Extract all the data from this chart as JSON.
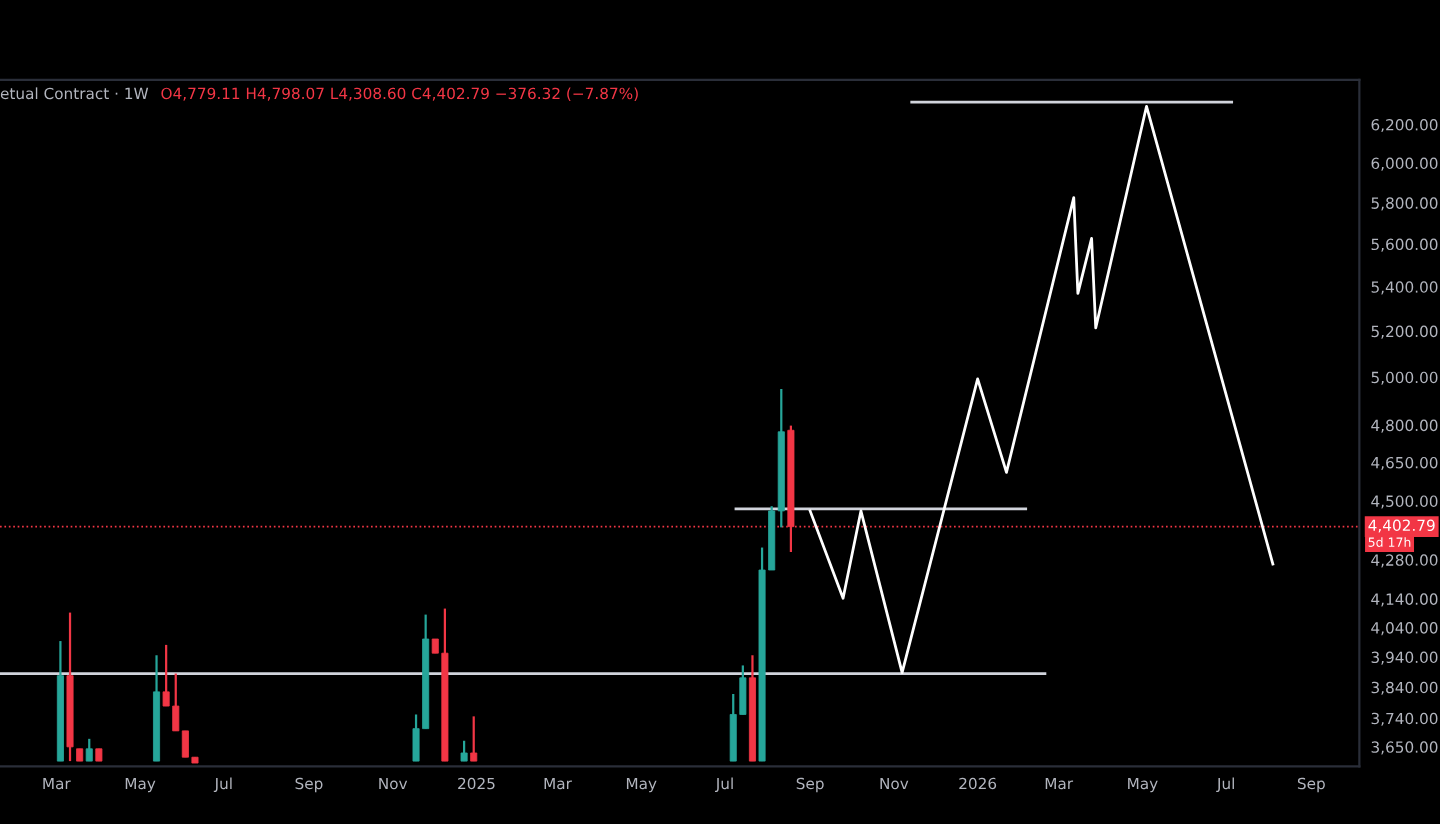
{
  "chart_data": {
    "type": "candlestick",
    "title": "etual Contract · 1W",
    "subtitle": "O4,779.11 H4,798.07 L4,308.60 C4,402.79 −376.32 (−7.87%)",
    "x": [
      "2024-03-04",
      "2024-03-11",
      "2024-03-18",
      "2024-03-25",
      "2024-04-01",
      "2024-05-13",
      "2024-05-20",
      "2024-05-27",
      "2024-06-03",
      "2024-06-10",
      "2024-11-18",
      "2024-11-25",
      "2024-12-02",
      "2024-12-09",
      "2024-12-23",
      "2024-12-30",
      "2025-07-07",
      "2025-07-14",
      "2025-07-21",
      "2025-07-28",
      "2025-08-04",
      "2025-08-11",
      "2025-08-18"
    ],
    "ohlc": [
      [
        3606,
        3994,
        3606,
        3878
      ],
      [
        3878,
        4092,
        3606,
        3650
      ],
      [
        3644,
        3644,
        3606,
        3606
      ],
      [
        3606,
        3675,
        3606,
        3644
      ],
      [
        3644,
        3644,
        3606,
        3606
      ],
      [
        3606,
        3946,
        3606,
        3825
      ],
      [
        3825,
        3981,
        3779,
        3779
      ],
      [
        3779,
        3885,
        3700,
        3700
      ],
      [
        3700,
        3700,
        3618,
        3618
      ],
      [
        3618,
        3618,
        3600,
        3600
      ],
      [
        3606,
        3752,
        3606,
        3707
      ],
      [
        3707,
        4085,
        3707,
        4001
      ],
      [
        4001,
        4001,
        3953,
        3953
      ],
      [
        3953,
        4106,
        3606,
        3606
      ],
      [
        3606,
        3669,
        3606,
        3631
      ],
      [
        3631,
        3746,
        3606,
        3606
      ],
      [
        3606,
        3818,
        3606,
        3752
      ],
      [
        3752,
        3912,
        3752,
        3871
      ],
      [
        3871,
        3946,
        3606,
        3606
      ],
      [
        3606,
        4325,
        3606,
        4243
      ],
      [
        4243,
        4480,
        4243,
        4462
      ],
      [
        4462,
        4950,
        4400,
        4773
      ],
      [
        4779.11,
        4798.07,
        4308.6,
        4402.79
      ]
    ],
    "colors": [
      "#26a69a",
      "#f23645",
      "#f23645",
      "#26a69a",
      "#f23645",
      "#26a69a",
      "#f23645",
      "#f23645",
      "#f23645",
      "#f23645",
      "#26a69a",
      "#26a69a",
      "#f23645",
      "#f23645",
      "#26a69a",
      "#f23645",
      "#26a69a",
      "#26a69a",
      "#f23645",
      "#26a69a",
      "#26a69a",
      "#26a69a",
      "#f23645"
    ],
    "series": [
      {
        "type": "line",
        "color": "#d1d4dc",
        "x": [
          "2024-01-20",
          "2026-02-19"
        ],
        "values": [
          3885,
          3885
        ]
      },
      {
        "type": "line",
        "color": "#d1d4dc",
        "x": [
          "2025-07-09",
          "2026-02-05"
        ],
        "values": [
          4470,
          4470
        ]
      },
      {
        "type": "line",
        "color": "#d1d4dc",
        "x": [
          "2025-11-14",
          "2026-07-05"
        ],
        "values": [
          6319,
          6319
        ]
      },
      {
        "type": "line",
        "color": "#ffffff",
        "x": [
          "2025-09-01",
          "2025-09-25",
          "2025-10-08",
          "2025-11-07",
          "2026-01-01",
          "2026-01-22",
          "2026-03-12",
          "2026-03-15",
          "2026-03-25",
          "2026-03-28",
          "2026-05-04",
          "2026-08-04"
        ],
        "values": [
          4462,
          4142,
          4462,
          3888,
          4993,
          4611,
          5826,
          5370,
          5627,
          5214,
          6297,
          4265
        ]
      }
    ],
    "log": "y",
    "ylim": [
      3590,
      6440
    ],
    "yticks": [
      {
        "value": 3650,
        "label": "3,650.00"
      },
      {
        "value": 3740,
        "label": "3,740.00"
      },
      {
        "value": 3840,
        "label": "3,840.00"
      },
      {
        "value": 3940,
        "label": "3,940.00"
      },
      {
        "value": 4040,
        "label": "4,040.00"
      },
      {
        "value": 4140,
        "label": "4,140.00"
      },
      {
        "value": 4280,
        "label": "4,280.00"
      },
      {
        "value": 4500,
        "label": "4,500.00"
      },
      {
        "value": 4650,
        "label": "4,650.00"
      },
      {
        "value": 4800,
        "label": "4,800.00"
      },
      {
        "value": 5000,
        "label": "5,000.00"
      },
      {
        "value": 5200,
        "label": "5,200.00"
      },
      {
        "value": 5400,
        "label": "5,400.00"
      },
      {
        "value": 5600,
        "label": "5,600.00"
      },
      {
        "value": 5800,
        "label": "5,800.00"
      },
      {
        "value": 6000,
        "label": "6,000.00"
      },
      {
        "value": 6200,
        "label": "6,200.00"
      }
    ],
    "xlim": [
      "2024-01-20",
      "2026-10-06"
    ],
    "xticks": [
      {
        "value": "2024-03-01",
        "label": "Mar"
      },
      {
        "value": "2024-05-01",
        "label": "May"
      },
      {
        "value": "2024-07-01",
        "label": "Jul"
      },
      {
        "value": "2024-09-01",
        "label": "Sep"
      },
      {
        "value": "2024-11-01",
        "label": "Nov"
      },
      {
        "value": "2025-01-01",
        "label": "2025"
      },
      {
        "value": "2025-03-01",
        "label": "Mar"
      },
      {
        "value": "2025-05-01",
        "label": "May"
      },
      {
        "value": "2025-07-01",
        "label": "Jul"
      },
      {
        "value": "2025-09-01",
        "label": "Sep"
      },
      {
        "value": "2025-11-01",
        "label": "Nov"
      },
      {
        "value": "2026-01-01",
        "label": "2026"
      },
      {
        "value": "2026-03-01",
        "label": "Mar"
      },
      {
        "value": "2026-05-01",
        "label": "May"
      },
      {
        "value": "2026-07-01",
        "label": "Jul"
      },
      {
        "value": "2026-09-01",
        "label": "Sep"
      }
    ],
    "ref_lines": [
      {
        "axis": "y",
        "value": 4402.79,
        "label": "4,402.79",
        "color": "#f23645",
        "line_style": "dotted"
      }
    ],
    "annotations": [
      "5d 17h"
    ],
    "grid": false,
    "legend": false
  }
}
